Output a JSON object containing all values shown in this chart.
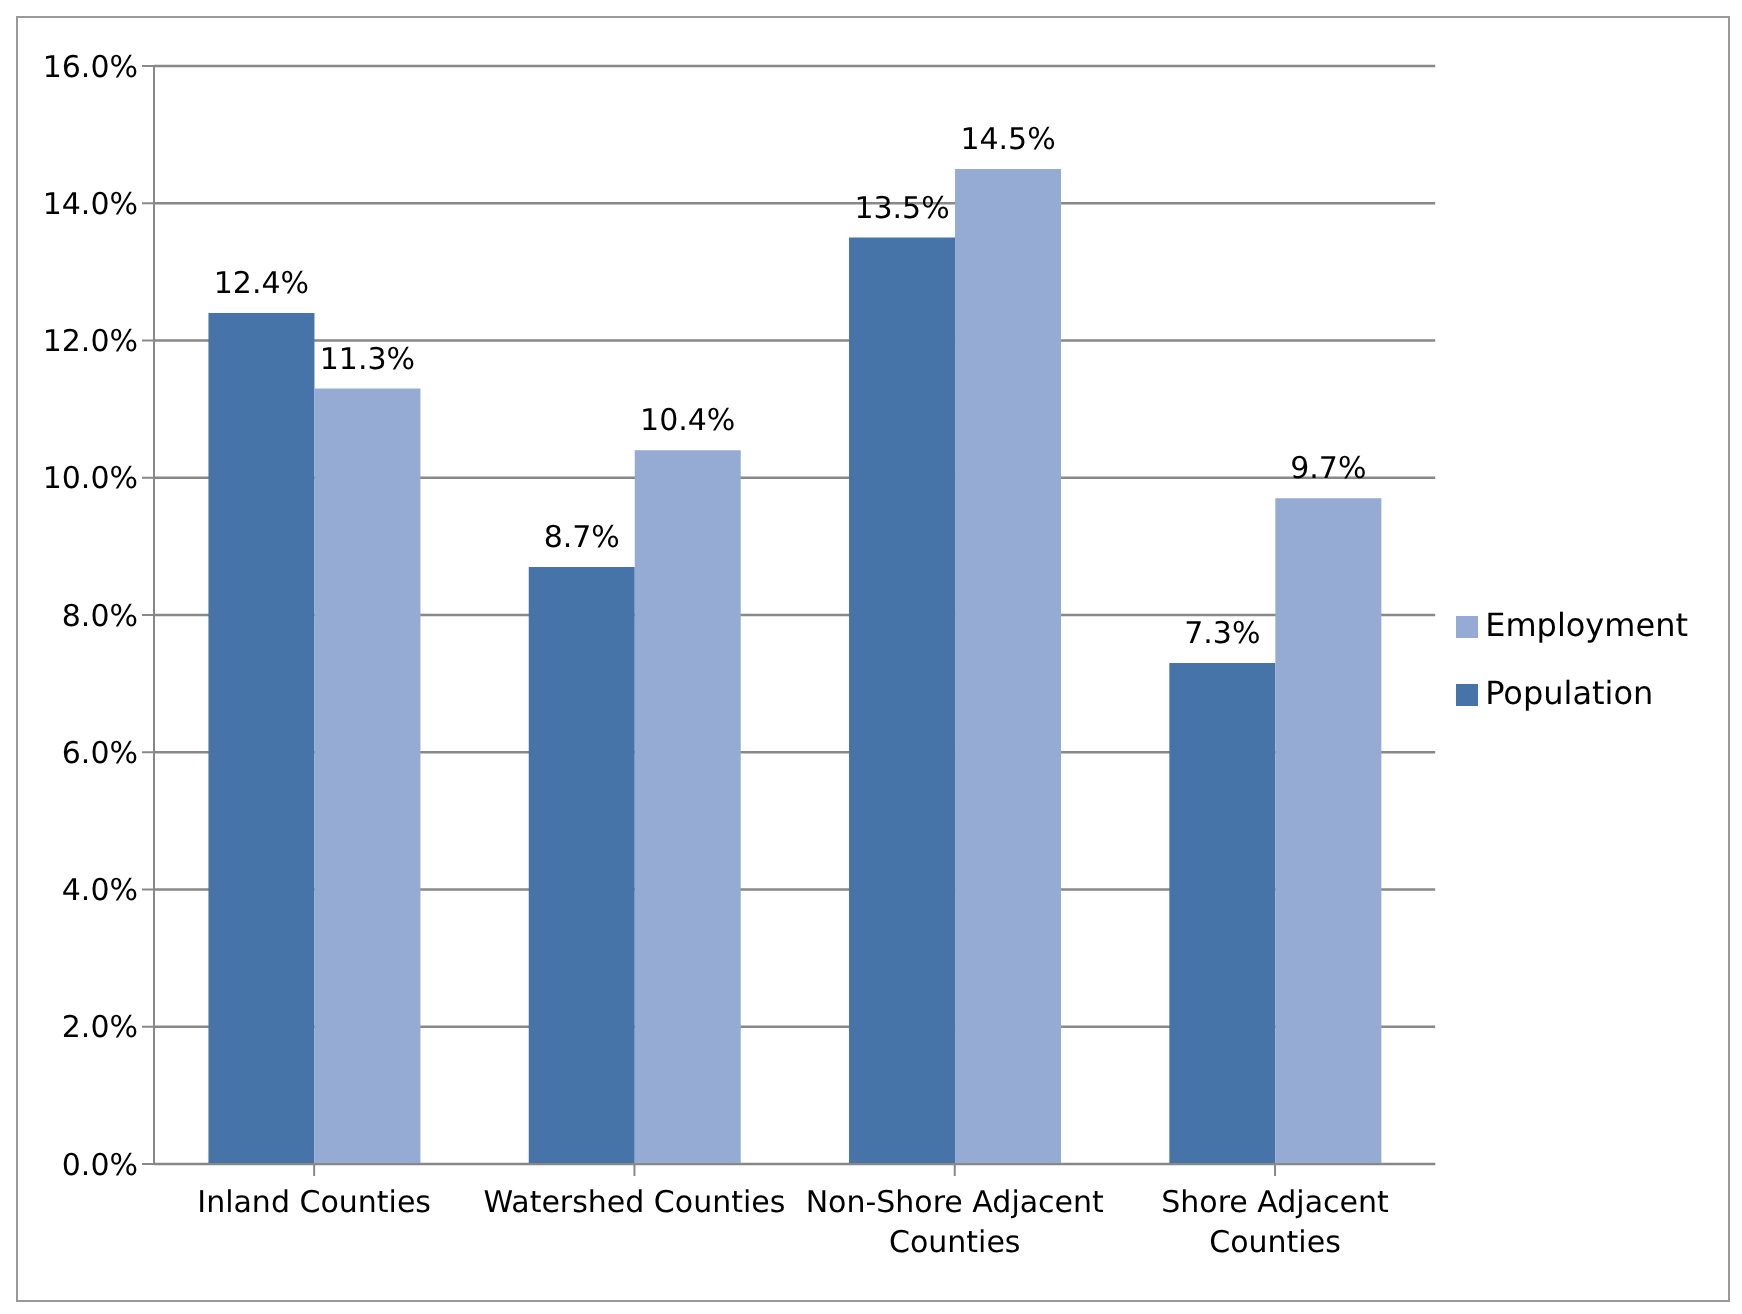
{
  "chart_data": {
    "type": "bar",
    "categories": [
      "Inland Counties",
      "Watershed Counties",
      "Non-Shore Adjacent Counties",
      "Shore Adjacent Counties"
    ],
    "series": [
      {
        "name": "Population",
        "color": "#4674a9",
        "values": [
          12.4,
          8.7,
          13.5,
          7.3
        ],
        "value_labels": [
          "12.4%",
          "8.7%",
          "13.5%",
          "7.3%"
        ]
      },
      {
        "name": "Employment",
        "color": "#95abd3",
        "values": [
          11.3,
          10.4,
          14.5,
          9.7
        ],
        "value_labels": [
          "11.3%",
          "10.4%",
          "14.5%",
          "9.7%"
        ]
      }
    ],
    "ylim": [
      0,
      16
    ],
    "yticks": [
      {
        "value": 0,
        "label": "0.0%"
      },
      {
        "value": 2,
        "label": "2.0%"
      },
      {
        "value": 4,
        "label": "4.0%"
      },
      {
        "value": 6,
        "label": "6.0%"
      },
      {
        "value": 8,
        "label": "8.0%"
      },
      {
        "value": 10,
        "label": "10.0%"
      },
      {
        "value": 12,
        "label": "12.0%"
      },
      {
        "value": 14,
        "label": "14.0%"
      },
      {
        "value": 16,
        "label": "16.0%"
      }
    ],
    "grid": "y",
    "legend": "right"
  }
}
